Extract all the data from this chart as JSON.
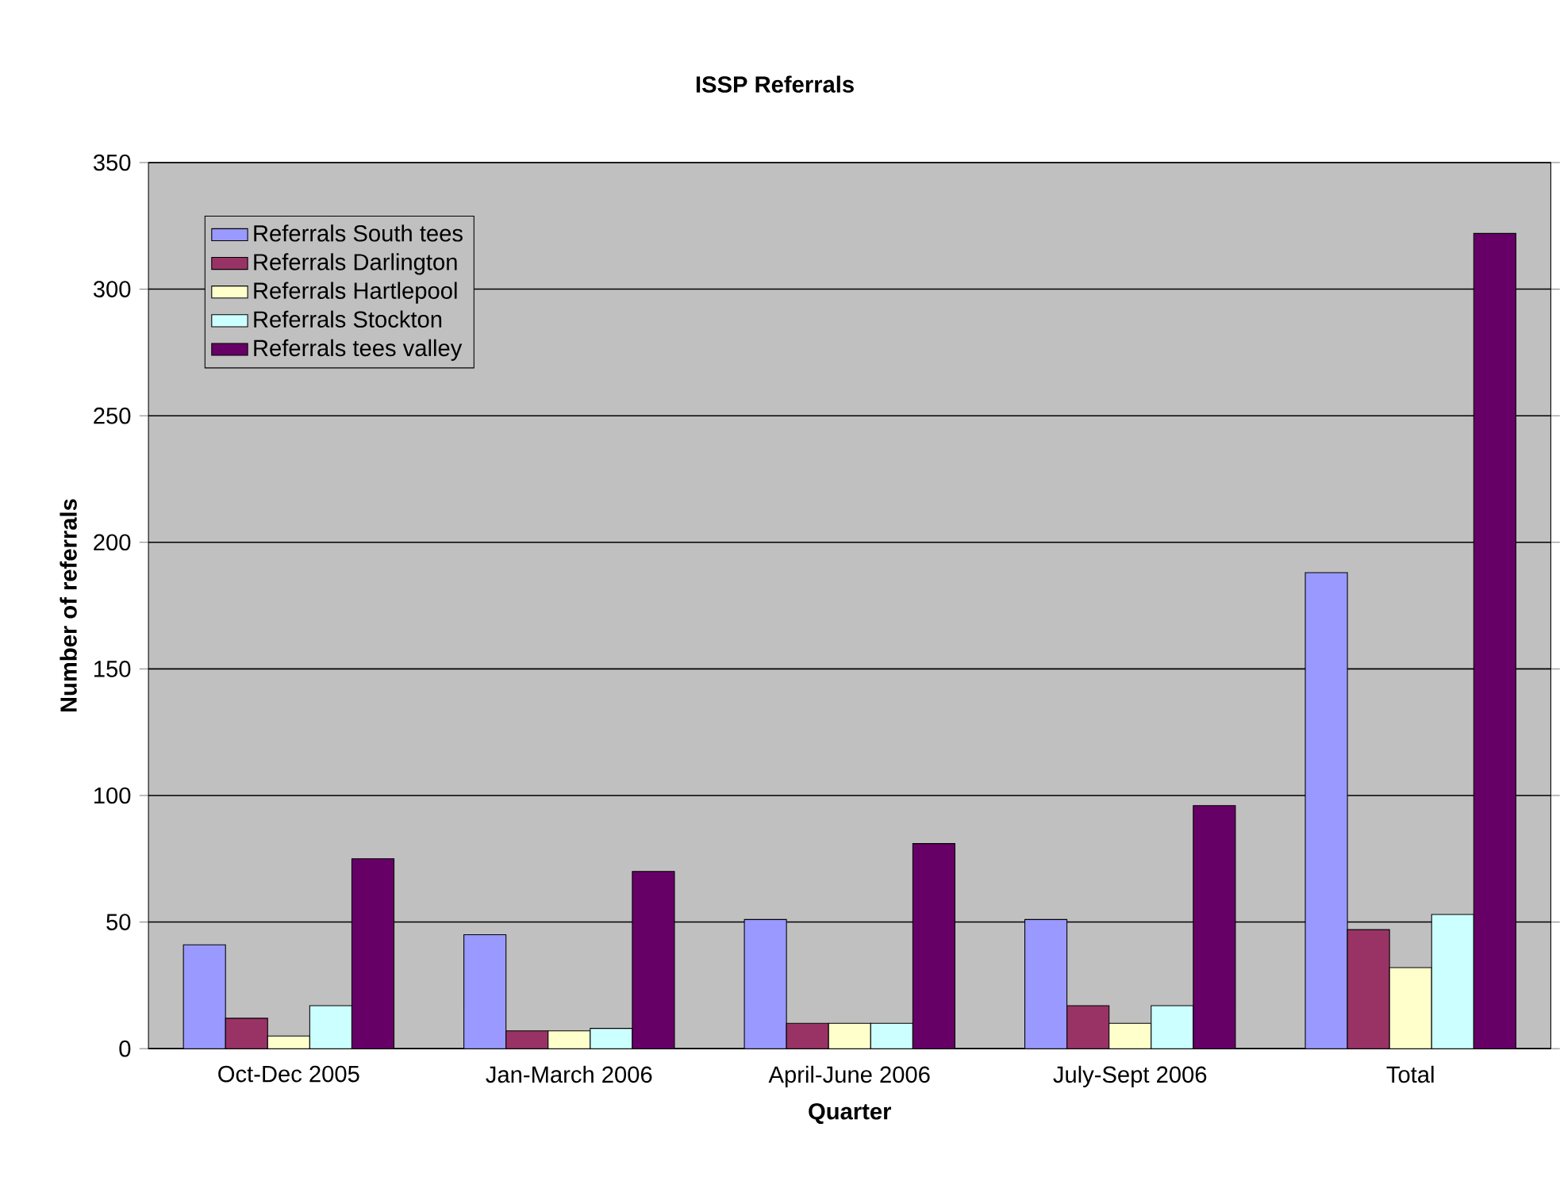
{
  "chart_data": {
    "type": "bar",
    "title": "ISSP Referrals",
    "xlabel": "Quarter",
    "ylabel": "Number of referrals",
    "categories": [
      "Oct-Dec 2005",
      "Jan-March 2006",
      "April-June 2006",
      "July-Sept 2006",
      "Total"
    ],
    "series": [
      {
        "name": "Referrals South tees",
        "color": "#9999ff",
        "values": [
          41,
          45,
          51,
          51,
          188
        ]
      },
      {
        "name": "Referrals Darlington",
        "color": "#993366",
        "values": [
          12,
          7,
          10,
          17,
          47
        ]
      },
      {
        "name": "Referrals Hartlepool",
        "color": "#ffffcc",
        "values": [
          5,
          7,
          10,
          10,
          32
        ]
      },
      {
        "name": "Referrals Stockton",
        "color": "#ccffff",
        "values": [
          17,
          8,
          10,
          17,
          53
        ]
      },
      {
        "name": "Referrals tees valley",
        "color": "#660066",
        "values": [
          75,
          70,
          81,
          96,
          322
        ]
      }
    ],
    "ylim": [
      0,
      350
    ],
    "yticks": [
      0,
      50,
      100,
      150,
      200,
      250,
      300,
      350
    ],
    "grid": "y",
    "legend": "top left"
  }
}
